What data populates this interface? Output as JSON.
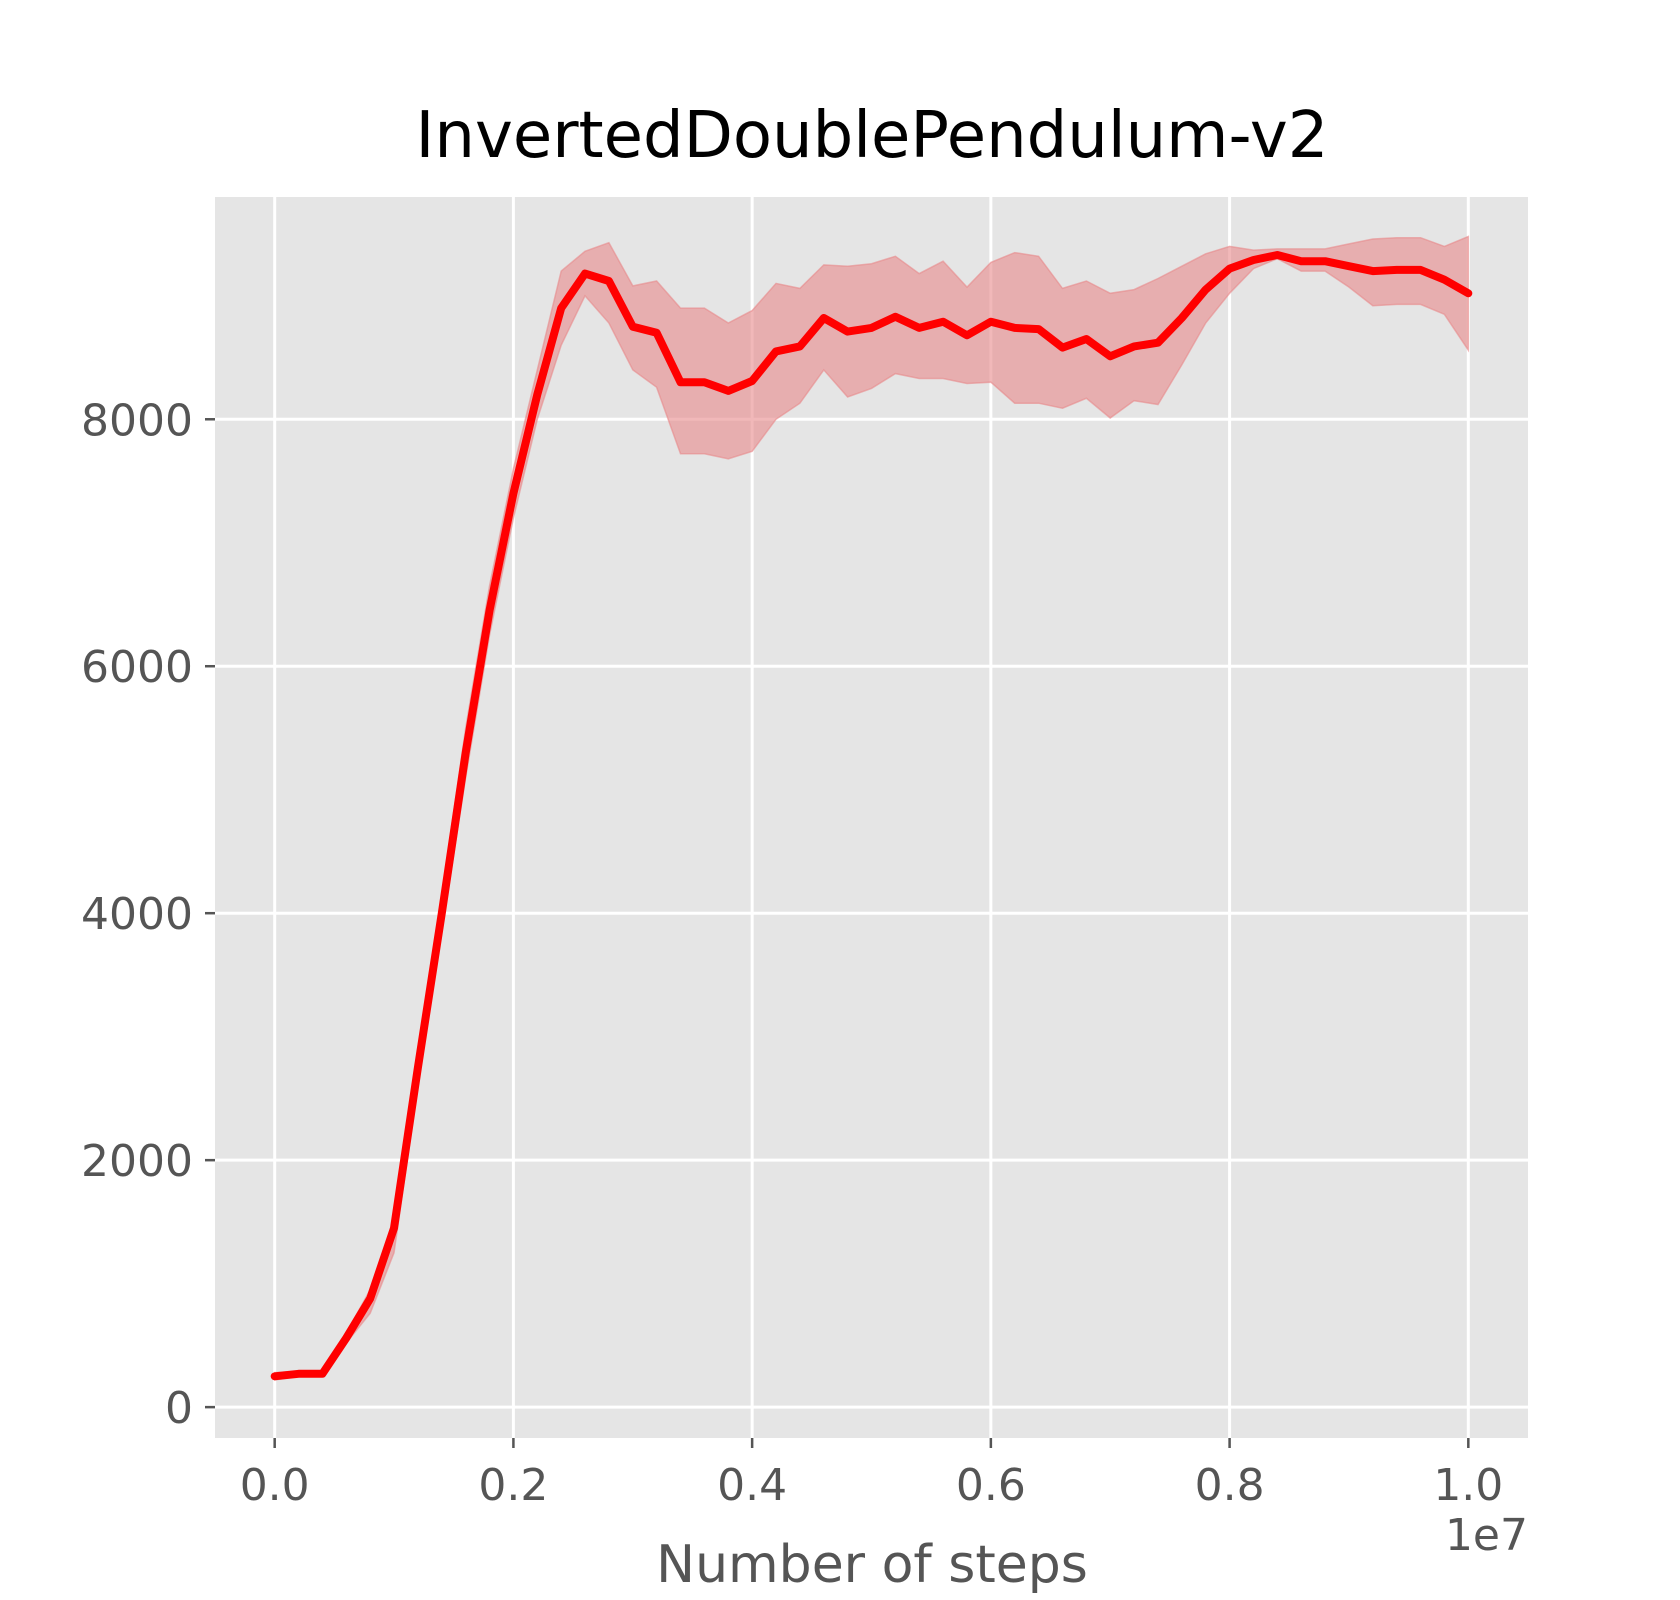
{
  "chart_data": {
    "type": "line",
    "title": "InvertedDoublePendulum-v2",
    "xlabel": "Number of steps",
    "ylabel": "",
    "x_offset_label": "1e7",
    "xlim": [
      -0.05,
      1.05
    ],
    "ylim": [
      -250,
      9800
    ],
    "x_ticks": [
      0.0,
      0.2,
      0.4,
      0.6,
      0.8,
      1.0
    ],
    "x_tick_labels": [
      "0.0",
      "0.2",
      "0.4",
      "0.6",
      "0.8",
      "1.0"
    ],
    "y_ticks": [
      0,
      2000,
      4000,
      6000,
      8000
    ],
    "y_tick_labels": [
      "0",
      "2000",
      "4000",
      "6000",
      "8000"
    ],
    "grid": true,
    "colors": {
      "line": "#ff0000",
      "band": "#e8888a",
      "background": "#e5e5e5",
      "grid": "#ffffff"
    },
    "series": [
      {
        "x": [
          0.0,
          0.02,
          0.04,
          0.06,
          0.08,
          0.1,
          0.12,
          0.14,
          0.16,
          0.18,
          0.2,
          0.22,
          0.24,
          0.26,
          0.28,
          0.3,
          0.32,
          0.34,
          0.36,
          0.38,
          0.4,
          0.42,
          0.44,
          0.46,
          0.48,
          0.5,
          0.52,
          0.54,
          0.56,
          0.58,
          0.6,
          0.62,
          0.64,
          0.66,
          0.68,
          0.7,
          0.72,
          0.74,
          0.76,
          0.78,
          0.8,
          0.82,
          0.84,
          0.86,
          0.88,
          0.9,
          0.92,
          0.94,
          0.96,
          0.98,
          1.0
        ],
        "values": [
          250,
          270,
          270,
          560,
          880,
          1450,
          2750,
          4000,
          5300,
          6450,
          7400,
          8200,
          8900,
          9180,
          9120,
          8750,
          8700,
          8300,
          8300,
          8230,
          8310,
          8550,
          8590,
          8820,
          8710,
          8740,
          8830,
          8740,
          8790,
          8680,
          8790,
          8740,
          8730,
          8580,
          8650,
          8510,
          8590,
          8620,
          8820,
          9050,
          9220,
          9290,
          9330,
          9280,
          9280,
          9240,
          9200,
          9210,
          9210,
          9130,
          9020
        ],
        "upper": [
          280,
          290,
          290,
          600,
          950,
          1500,
          2850,
          4150,
          5500,
          6650,
          7600,
          8400,
          9200,
          9360,
          9430,
          9080,
          9120,
          8900,
          8900,
          8780,
          8880,
          9100,
          9060,
          9250,
          9240,
          9260,
          9320,
          9180,
          9280,
          9070,
          9270,
          9350,
          9320,
          9060,
          9120,
          9020,
          9050,
          9140,
          9240,
          9340,
          9400,
          9370,
          9380,
          9380,
          9380,
          9420,
          9460,
          9470,
          9470,
          9400,
          9480
        ],
        "lower": [
          220,
          250,
          250,
          520,
          760,
          1250,
          2600,
          3850,
          5100,
          6250,
          7200,
          8000,
          8600,
          9000,
          8780,
          8400,
          8260,
          7720,
          7720,
          7680,
          7740,
          8000,
          8130,
          8400,
          8180,
          8250,
          8370,
          8330,
          8330,
          8290,
          8300,
          8130,
          8130,
          8090,
          8170,
          8010,
          8150,
          8120,
          8440,
          8780,
          9020,
          9220,
          9300,
          9200,
          9200,
          9070,
          8920,
          8930,
          8930,
          8850,
          8560
        ]
      }
    ]
  }
}
